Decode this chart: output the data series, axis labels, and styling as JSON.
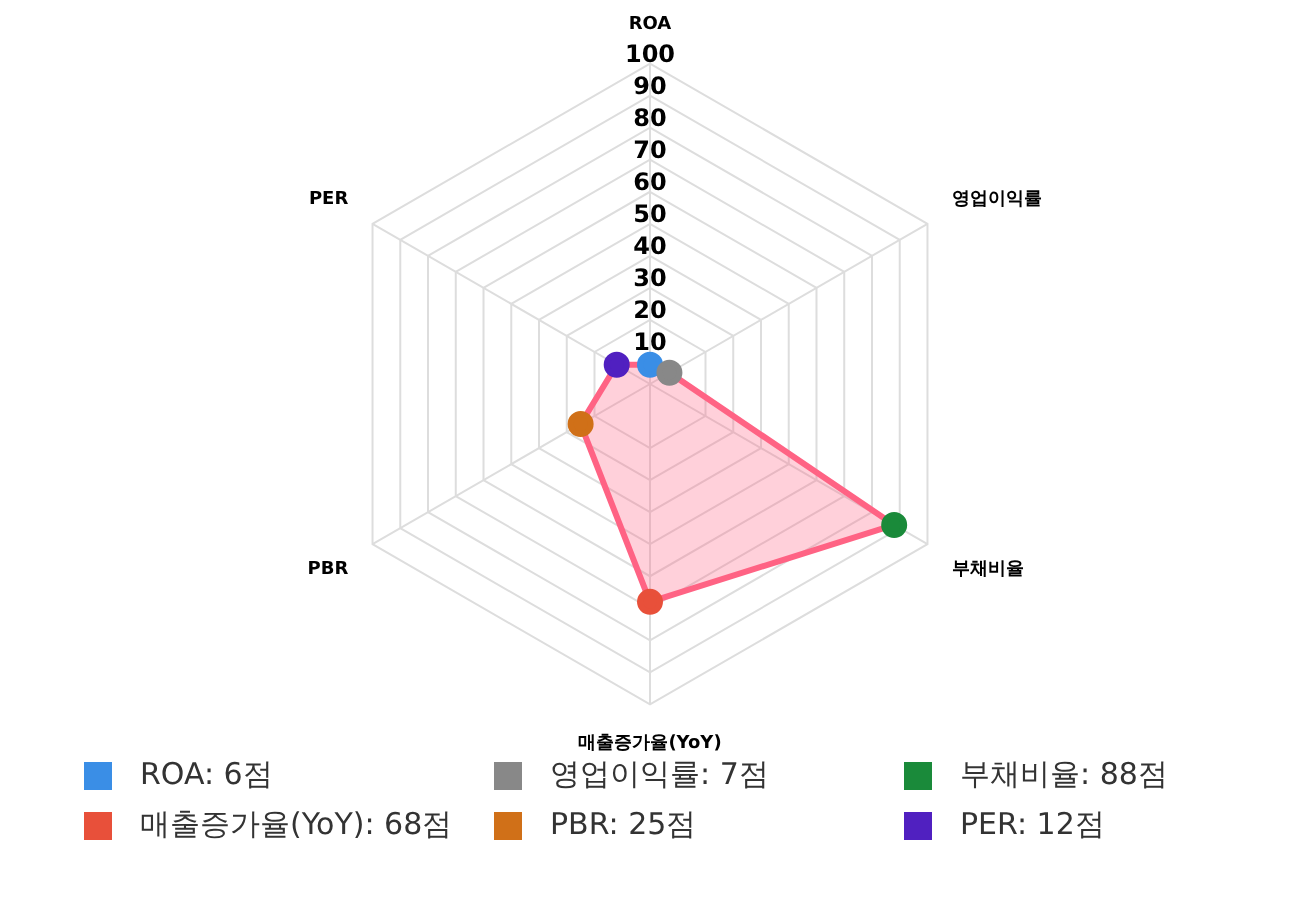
{
  "chart_data": {
    "type": "radar",
    "categories": [
      "ROA",
      "영업이익률",
      "부채비율",
      "매출증가율(YoY)",
      "PBR",
      "PER"
    ],
    "series": [
      {
        "type": "radar",
        "color": "#ff6384",
        "values": [
          6,
          7,
          88,
          68,
          25,
          12
        ],
        "colors": [
          "#3a8ee6",
          "#888888",
          "#1a8a3a",
          "#e8503a",
          "#d07018",
          "#5020c0"
        ]
      }
    ],
    "annotations": [
      "ROA: 6점",
      "영업이익률: 7점",
      "부채비율: 88점",
      "매출증가율(YoY): 68점",
      "PBR: 25점",
      "PER: 12점"
    ],
    "ylim": [
      0,
      100
    ],
    "yticks": [
      10,
      20,
      30,
      40,
      50,
      60,
      70,
      80,
      90,
      100
    ],
    "grid": true,
    "marker": "circle"
  }
}
